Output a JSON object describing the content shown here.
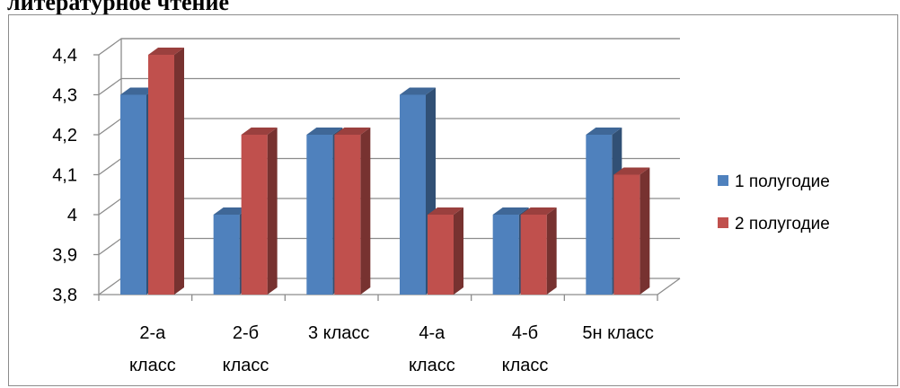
{
  "header": {
    "text": "литературное чтение"
  },
  "chart_data": {
    "type": "bar",
    "categories": [
      "2-а\nкласс",
      "2-б\nкласс",
      "3 класс",
      "4-а\nкласс",
      "4-б\nкласс",
      "5н класс"
    ],
    "series": [
      {
        "name": "1 полугодие",
        "color": "#4f81bd",
        "values": [
          4.3,
          4.0,
          4.2,
          4.3,
          4.0,
          4.2
        ]
      },
      {
        "name": "2 полугодие",
        "color": "#c0504d",
        "values": [
          4.4,
          4.2,
          4.2,
          4.0,
          4.0,
          4.1
        ]
      }
    ],
    "y_ticks": [
      "3,8",
      "3,9",
      "4",
      "4,1",
      "4,2",
      "4,3",
      "4,4"
    ],
    "ylim": [
      3.8,
      4.4
    ],
    "grid": true,
    "legend_position": "right",
    "style": "3d-clustered-column"
  }
}
